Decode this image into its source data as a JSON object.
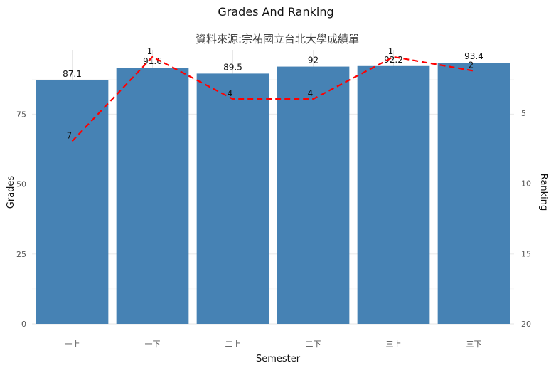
{
  "chart_data": {
    "type": "bar",
    "title": "Grades And Ranking",
    "subtitle": "資料來源:宗祐國立台北大學成績單",
    "xlabel": "Semester",
    "ylabel": "Grades",
    "y2label": "Ranking",
    "categories": [
      "一上",
      "一下",
      "二上",
      "二下",
      "三上",
      "三下"
    ],
    "series": [
      {
        "type": "bar",
        "color": "#4682B4",
        "values": [
          87.1,
          91.6,
          89.5,
          92,
          92.2,
          93.4
        ]
      },
      {
        "type": "line",
        "color": "#FF0000",
        "style": "dashed",
        "axis": "right",
        "values": [
          7,
          1,
          4,
          4,
          1,
          2
        ]
      }
    ],
    "ylim": [
      0,
      98
    ],
    "y_ticks": [
      0,
      25,
      50,
      75
    ],
    "y2lim": [
      20,
      0.5
    ],
    "y2_ticks": [
      5,
      10,
      15,
      20
    ],
    "y2_reversed": true,
    "grid": true,
    "legend": "none"
  }
}
